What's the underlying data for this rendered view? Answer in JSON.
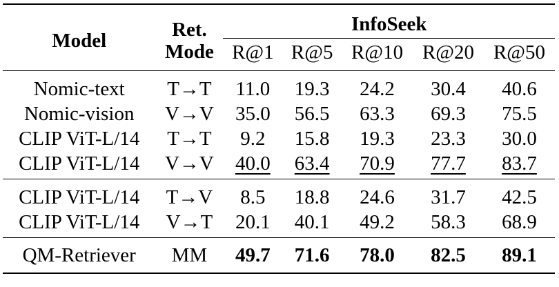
{
  "headers": {
    "model": "Model",
    "ret_mode_line1": "Ret.",
    "ret_mode_line2": "Mode",
    "group": "InfoSeek",
    "metrics": [
      "R@1",
      "R@5",
      "R@10",
      "R@20",
      "R@50"
    ]
  },
  "group1": [
    {
      "model": "Nomic-text",
      "mode": "T→T",
      "values": [
        "11.0",
        "19.3",
        "24.2",
        "30.4",
        "40.6"
      ]
    },
    {
      "model": "Nomic-vision",
      "mode": "V→V",
      "values": [
        "35.0",
        "56.5",
        "63.3",
        "69.3",
        "75.5"
      ]
    },
    {
      "model": "CLIP ViT-L/14",
      "mode": "T→T",
      "values": [
        "9.2",
        "15.8",
        "19.3",
        "23.3",
        "30.0"
      ]
    },
    {
      "model": "CLIP ViT-L/14",
      "mode": "V→V",
      "values": [
        "40.0",
        "63.4",
        "70.9",
        "77.7",
        "83.7"
      ]
    }
  ],
  "group2": [
    {
      "model": "CLIP ViT-L/14",
      "mode": "T→V",
      "values": [
        "8.5",
        "18.8",
        "24.6",
        "31.7",
        "42.5"
      ]
    },
    {
      "model": "CLIP ViT-L/14",
      "mode": "V→T",
      "values": [
        "20.1",
        "40.1",
        "49.2",
        "58.3",
        "68.9"
      ]
    }
  ],
  "group3": [
    {
      "model": "QM-Retriever",
      "mode": "MM",
      "values": [
        "49.7",
        "71.6",
        "78.0",
        "82.5",
        "89.1"
      ]
    }
  ]
}
